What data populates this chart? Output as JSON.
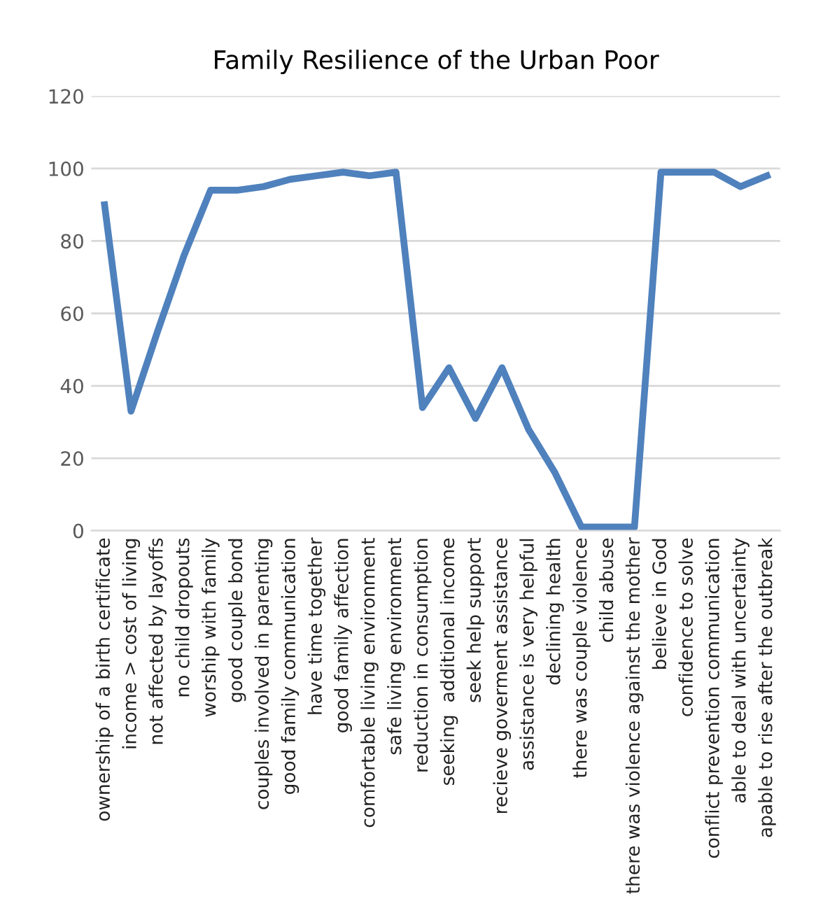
{
  "chart_data": {
    "type": "line",
    "title": "Family Resilience of the Urban Poor",
    "categories": [
      "ownership of a birth certificate",
      "income > cost of living",
      "not affected by layoffs",
      "no child dropouts",
      "worship with family",
      "good couple bond",
      "couples involved in parenting",
      "good family communication",
      "have time together",
      "good family affection",
      "comfortable living environment",
      "safe living environment",
      "reduction in consumption",
      "seeking  additional income",
      "seek help support",
      "recieve goverment assistance",
      "assistance is very helpful",
      "declining health",
      "there was couple violence",
      "child abuse",
      "there was violence against the mother",
      "believe in God",
      "confidence to solve",
      "conflict prevention communication",
      "able to deal with uncertainty",
      "apable to rise after the outbreak"
    ],
    "series": [
      {
        "color": "#4f81bd",
        "values": [
          90,
          33,
          55,
          76,
          94,
          94,
          95,
          97,
          98,
          99,
          98,
          99,
          34,
          45,
          31,
          45,
          28,
          16,
          1,
          1,
          1,
          99,
          99,
          99,
          95,
          98
        ]
      }
    ],
    "ylim": [
      0,
      120
    ],
    "yticks": [
      0,
      20,
      40,
      60,
      80,
      100,
      120
    ],
    "grid": "y",
    "legend": false,
    "marker": "none",
    "line_style": "solid"
  }
}
